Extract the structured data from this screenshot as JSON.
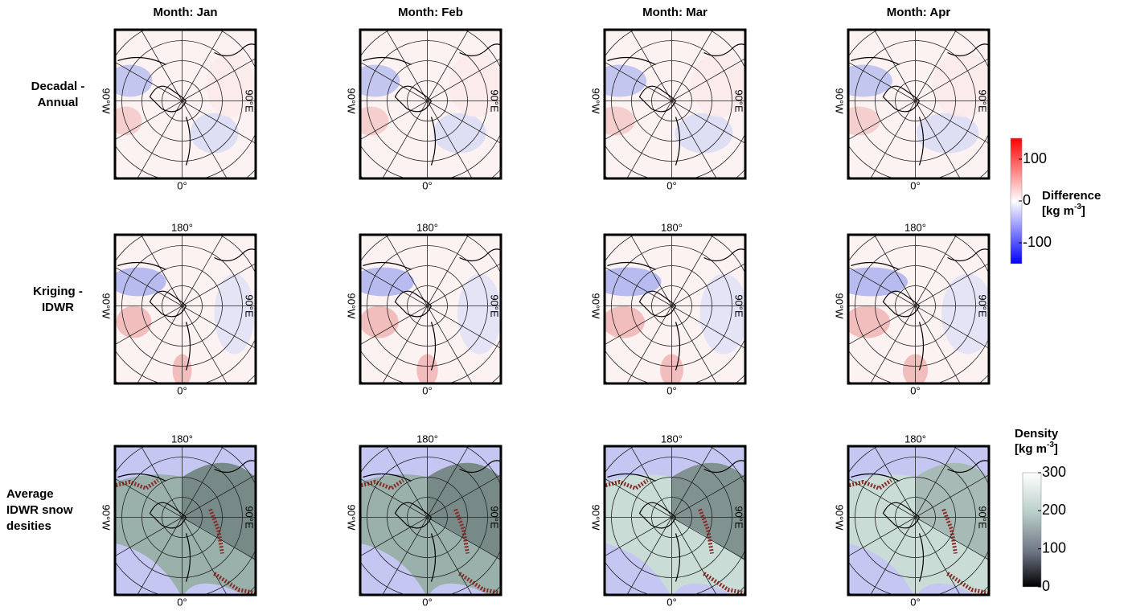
{
  "columns": [
    "Month: Jan",
    "Month: Feb",
    "Month: Mar",
    "Month: Apr"
  ],
  "rows": [
    {
      "label": [
        "Decadal -",
        "Annual"
      ]
    },
    {
      "label": [
        "Kriging -",
        "IDWR"
      ]
    },
    {
      "label": [
        "Average",
        "IDWR snow",
        "desities"
      ]
    }
  ],
  "lon_labels": {
    "top": "180°",
    "bottom": "0°",
    "left": "90°W",
    "right": "90°E"
  },
  "colorbars": [
    {
      "title": "Difference",
      "unit": {
        "text": "[kg m",
        "sup": "-3",
        "end": "]"
      },
      "lim": [
        -150,
        150
      ],
      "ticks": [
        100,
        0,
        -100
      ]
    },
    {
      "title": "Density",
      "unit": {
        "text": "[kg m",
        "sup": "-3",
        "end": "]"
      },
      "lim": [
        0,
        300
      ],
      "ticks": [
        300,
        200,
        100,
        0
      ]
    }
  ]
}
